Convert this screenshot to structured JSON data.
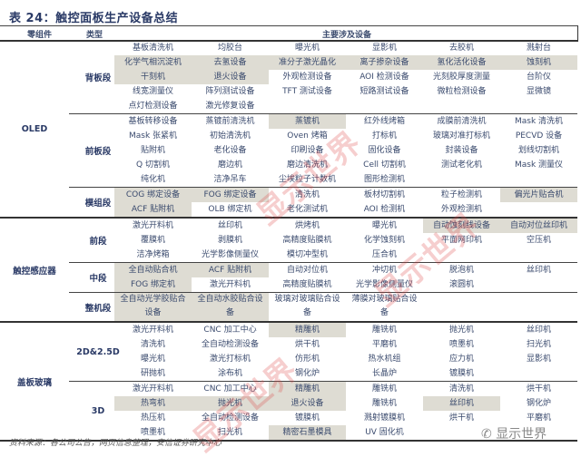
{
  "title": "表 24：触控面板生产设备总结",
  "header": {
    "col1": "零组件",
    "col2": "类型",
    "col3": "主要涉及设备"
  },
  "sections": [
    {
      "label": "OLED",
      "groups": [
        {
          "label": "背板段",
          "rows": [
            {
              "cells": [
                "基板清洗机",
                "均胶台",
                "曝光机",
                "显影机",
                "去胶机",
                "溅射台"
              ],
              "shaded": []
            },
            {
              "cells": [
                "化学气相沉淀机",
                "去氢设备",
                "准分子激光晶化",
                "离子掺杂设备",
                "氢化活化设备",
                "蚀刻机"
              ],
              "shaded": [
                0,
                1,
                2,
                3,
                4,
                5
              ]
            },
            {
              "cells": [
                "干刻机",
                "退火设备",
                "外观检测设备",
                "AOI 检测设备",
                "光刻胶厚度测量",
                "台阶仪"
              ],
              "shaded": [
                0,
                1
              ]
            },
            {
              "cells": [
                "线宽测量仪",
                "阵列测试设备",
                "TFT 测试设备",
                "短路测试设备",
                "微粒检测设备",
                "显微镜"
              ],
              "shaded": []
            },
            {
              "cells": [
                "点灯检测设备",
                "激光修复设备",
                "",
                "",
                "",
                ""
              ],
              "shaded": []
            }
          ]
        },
        {
          "label": "前板段",
          "rows": [
            {
              "cells": [
                "基板转移设备",
                "蒸镀前清洗机",
                "蒸镀机",
                "红外线烤箱",
                "成膜前清洗机",
                "Mask 清洗机"
              ],
              "shaded": [
                2
              ]
            },
            {
              "cells": [
                "Mask 张紧机",
                "初始清洗机",
                "Oven 烤箱",
                "打标机",
                "玻璃对准打标机",
                "PECVD 设备"
              ],
              "shaded": []
            },
            {
              "cells": [
                "贴附机",
                "老化设备",
                "印刷设备",
                "固化设备",
                "封装设备",
                "划线切割机"
              ],
              "shaded": []
            },
            {
              "cells": [
                "Q 切割机",
                "磨边机",
                "磨边清洗机",
                "Cell 切割机",
                "测试老化机",
                "Mask 测量仪"
              ],
              "shaded": []
            },
            {
              "cells": [
                "纯化机",
                "洁净吊车",
                "尘埃粒子计数机",
                "图形检测机",
                "",
                ""
              ],
              "shaded": []
            }
          ]
        },
        {
          "label": "模组段",
          "rows": [
            {
              "cells": [
                "COG 绑定设备",
                "FOG 绑定设备",
                "清洗机",
                "板材切割机",
                "粒子检测机",
                "偏光片贴合机"
              ],
              "shaded": [
                0,
                1,
                5
              ]
            },
            {
              "cells": [
                "ACF 贴附机",
                "OLB 绑定机",
                "老化测试机",
                "AOI 检测机",
                "外观检测机",
                ""
              ],
              "shaded": [
                0
              ]
            }
          ]
        }
      ]
    },
    {
      "label": "触控感应器",
      "groups": [
        {
          "label": "前段",
          "rows": [
            {
              "cells": [
                "激光开料机",
                "丝印机",
                "烘烤机",
                "曝光机",
                "自动蚀刻线设备",
                "自动对位丝印机"
              ],
              "shaded": [
                4,
                5
              ]
            },
            {
              "cells": [
                "覆膜机",
                "剥膜机",
                "高精度贴膜机",
                "化学蚀刻机",
                "平面网印机",
                "空压机"
              ],
              "shaded": []
            },
            {
              "cells": [
                "洁净烤箱",
                "光学影像侧量仪",
                "模切冲型机",
                "压合机",
                "",
                ""
              ],
              "shaded": []
            }
          ]
        },
        {
          "label": "中段",
          "rows": [
            {
              "cells": [
                "全自动贴合机",
                "ACF 贴附机",
                "自动对位机",
                "冲切机",
                "脱泡机",
                "丝印机"
              ],
              "shaded": [
                0,
                1
              ]
            },
            {
              "cells": [
                "FOG 绑定机",
                "激光开料机",
                "高精度贴膜机",
                "光学影像侧量仪",
                "滚圆机",
                ""
              ],
              "shaded": [
                0
              ]
            }
          ]
        },
        {
          "label": "整机段",
          "rows": [
            {
              "cells": [
                "全自动光学胶贴合设备",
                "全自动水胶贴合设备",
                "玻璃对玻璃贴合设备",
                "薄膜对玻璃贴合设备",
                "",
                ""
              ],
              "shaded": [
                0,
                1
              ],
              "tall": true
            }
          ]
        }
      ]
    },
    {
      "label": "盖板玻璃",
      "groups": [
        {
          "label": "2D&2.5D",
          "rows": [
            {
              "cells": [
                "激光开料机",
                "CNC 加工中心",
                "精雕机",
                "雕铣机",
                "抛光机",
                "丝印机"
              ],
              "shaded": [
                2
              ]
            },
            {
              "cells": [
                "清洗机",
                "全自动检测设备",
                "烘干机",
                "平磨机",
                "喷墨机",
                "扫光机"
              ],
              "shaded": []
            },
            {
              "cells": [
                "曝光机",
                "激光打标机",
                "仿形机",
                "热水机组",
                "应力机",
                "显影机"
              ],
              "shaded": []
            },
            {
              "cells": [
                "研抛机",
                "涂布机",
                "钢化炉",
                "长晶炉",
                "镀膜机",
                ""
              ],
              "shaded": []
            }
          ]
        },
        {
          "label": "3D",
          "rows": [
            {
              "cells": [
                "激光开料机",
                "CNC 加工中心",
                "精雕机",
                "雕铣机",
                "清洗机",
                "烘干机"
              ],
              "shaded": [
                2
              ]
            },
            {
              "cells": [
                "热弯机",
                "抛光机",
                "退火设备",
                "雕铣机",
                "丝印机",
                "钢化炉"
              ],
              "shaded": [
                0,
                1,
                2,
                4
              ]
            },
            {
              "cells": [
                "热压机",
                "全自动检测设备",
                "镀膜机",
                "溅射镀膜机",
                "烘干机",
                "平磨机"
              ],
              "shaded": []
            },
            {
              "cells": [
                "喷墨机",
                "扫光机",
                "精密石墨模具",
                "UV 固化机",
                "",
                ""
              ],
              "shaded": [
                2
              ]
            }
          ]
        }
      ]
    }
  ],
  "source": "资料来源：各公司公告，网页信息整理，安信证券研究中心",
  "watermark": "显示世界",
  "logo_text": "显示世界",
  "colors": {
    "text": "#3b4b6e",
    "shade": "#dedcd3",
    "watermark": "#dc3c3c"
  }
}
